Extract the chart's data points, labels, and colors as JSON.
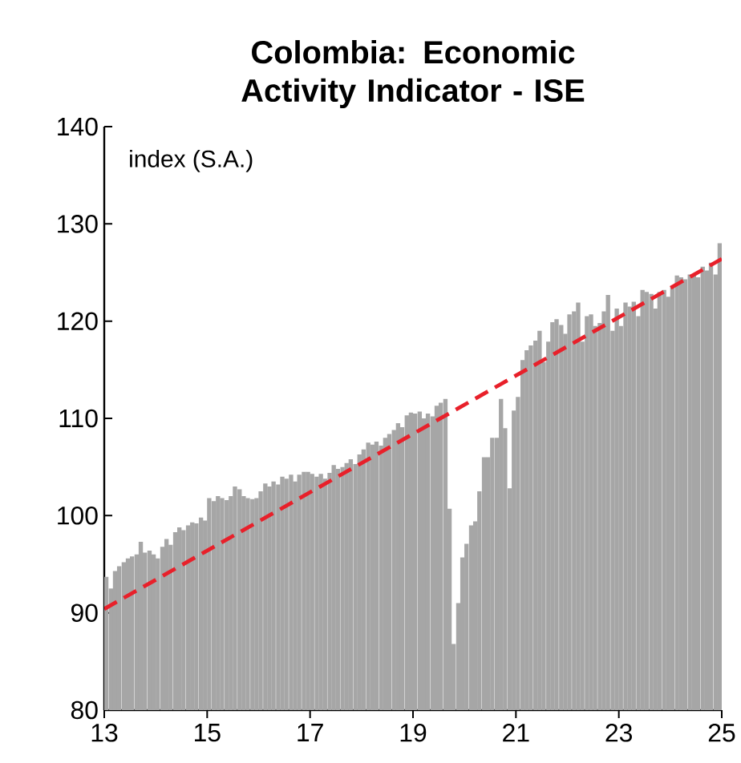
{
  "chart_data": {
    "type": "bar",
    "title": "Colombia: Economic Activity Indicator - ISE",
    "annotations": [
      "index (S.A.)"
    ],
    "x": [
      13.04,
      13.13,
      13.21,
      13.29,
      13.38,
      13.46,
      13.54,
      13.63,
      13.71,
      13.79,
      13.88,
      13.96,
      14.04,
      14.13,
      14.21,
      14.29,
      14.38,
      14.46,
      14.54,
      14.63,
      14.71,
      14.79,
      14.88,
      14.96,
      15.04,
      15.13,
      15.21,
      15.29,
      15.38,
      15.46,
      15.54,
      15.63,
      15.71,
      15.79,
      15.88,
      15.96,
      16.04,
      16.13,
      16.21,
      16.29,
      16.38,
      16.46,
      16.54,
      16.63,
      16.71,
      16.79,
      16.88,
      16.96,
      17.04,
      17.13,
      17.21,
      17.29,
      17.38,
      17.46,
      17.54,
      17.63,
      17.71,
      17.79,
      17.88,
      17.96,
      18.04,
      18.13,
      18.21,
      18.29,
      18.38,
      18.46,
      18.54,
      18.63,
      18.71,
      18.79,
      18.88,
      18.96,
      19.04,
      19.13,
      19.21,
      19.29,
      19.38,
      19.46,
      19.54,
      19.63,
      19.71,
      19.79,
      19.88,
      19.96,
      20.04,
      20.13,
      20.21,
      20.29,
      20.38,
      20.46,
      20.54,
      20.63,
      20.71,
      20.79,
      20.88,
      20.96,
      21.04,
      21.13,
      21.21,
      21.29,
      21.38,
      21.46,
      21.54,
      21.63,
      21.71,
      21.79,
      21.88,
      21.96,
      22.04,
      22.13,
      22.21,
      22.29,
      22.38,
      22.46,
      22.54,
      22.63,
      22.71,
      22.79,
      22.88,
      22.96,
      23.04,
      23.13,
      23.21,
      23.29,
      23.38,
      23.46,
      23.54,
      23.63,
      23.71,
      23.79,
      23.88,
      23.96,
      24.04,
      24.13,
      24.21,
      24.29,
      24.38,
      24.46,
      24.54,
      24.63,
      24.71,
      24.79,
      24.88,
      24.96
    ],
    "series": [
      {
        "color": "#a6a6a6",
        "values": [
          93.7,
          92.5,
          94.3,
          94.8,
          95.2,
          95.6,
          95.8,
          96,
          97.3,
          96.2,
          96.4,
          96,
          95.6,
          96.8,
          97.6,
          97,
          98.3,
          98.8,
          98.5,
          99,
          99.3,
          99.2,
          99.8,
          99.5,
          101.8,
          101.5,
          102,
          101.8,
          101.6,
          102,
          103,
          102.7,
          102,
          101.8,
          101.7,
          101.8,
          102.5,
          103.3,
          103,
          103.5,
          103.2,
          104,
          103.8,
          104.2,
          103.5,
          104.2,
          104.5,
          104.5,
          104.3,
          104,
          104.3,
          103.8,
          104.4,
          105.2,
          104.8,
          105,
          105.4,
          105.8,
          105.3,
          106.3,
          106.8,
          107.5,
          107.3,
          107.6,
          107.2,
          108,
          108.4,
          108.8,
          109.5,
          109.1,
          110.3,
          110.6,
          110.5,
          110.7,
          110,
          110.5,
          110.2,
          111.3,
          111.6,
          112,
          100.7,
          86.8,
          91,
          95.7,
          97.1,
          99,
          99.4,
          102.5,
          106,
          106,
          108,
          108,
          112,
          109,
          102.8,
          110.8,
          112.2,
          116,
          117,
          117.5,
          118,
          119,
          115.8,
          117.9,
          119.9,
          120.2,
          119.6,
          118.7,
          120.7,
          121,
          121.9,
          117.9,
          120.5,
          120.7,
          119.5,
          119.8,
          121,
          122.7,
          119,
          121.3,
          119.5,
          121.9,
          121.5,
          122,
          120.5,
          123.2,
          123,
          122.8,
          121.3,
          123,
          123.2,
          122.5,
          123.5,
          124.7,
          124.5,
          124.3,
          124.8,
          124.7,
          124.5,
          125.6,
          125.2,
          126,
          124.8,
          128
        ]
      },
      {
        "type": "line",
        "color": "#e8202a",
        "line_style": "dashed",
        "x": [
          13,
          25
        ],
        "values": [
          90.4,
          126.4
        ]
      }
    ],
    "xlim": [
      13,
      25
    ],
    "ylim": [
      80,
      140
    ],
    "xticks": [
      13,
      15,
      17,
      19,
      21,
      23,
      25
    ],
    "yticks": [
      80,
      90,
      100,
      110,
      120,
      130,
      140
    ]
  }
}
